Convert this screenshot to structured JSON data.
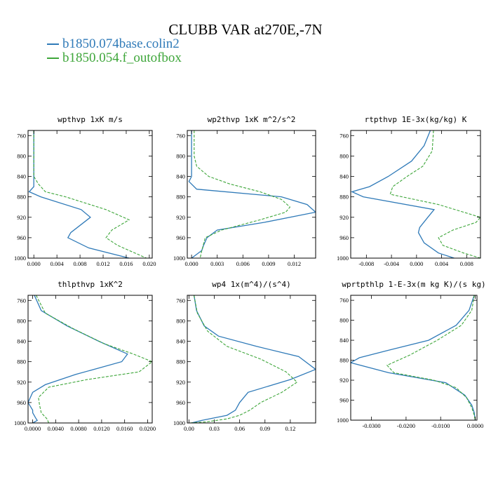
{
  "title": "CLUBB VAR at270E,-7N",
  "legend": [
    {
      "name": "b1850.074base.colin2",
      "color": "#2f7ab8"
    },
    {
      "name": "b1850.054.f_outofbox",
      "color": "#3ea63a"
    }
  ],
  "chart_data": [
    {
      "type": "line",
      "title": "wpthvp  1xK m/s",
      "xlim": [
        -0.001,
        0.0205
      ],
      "ylim": [
        1000,
        750
      ],
      "xticks": [
        "0.000",
        "0.004",
        "0.008",
        "0.012",
        "0.016",
        "0.020"
      ],
      "yticks": [
        "760",
        "800",
        "840",
        "880",
        "920",
        "960",
        "1000"
      ],
      "series": [
        {
          "name": "b1850.074base.colin2",
          "x": [
            0,
            0,
            0,
            0,
            0,
            -0.0008,
            0.0012,
            0.0082,
            0.0098,
            0.0064,
            0.0059,
            0.0095,
            0.0165
          ],
          "y": [
            750,
            780,
            810,
            840,
            860,
            870,
            880,
            905,
            920,
            950,
            960,
            980,
            1000
          ]
        },
        {
          "name": "b1850.054.f_outofbox",
          "x": [
            0,
            0,
            0,
            0.0008,
            0.002,
            0.0055,
            0.0125,
            0.0165,
            0.0135,
            0.0125,
            0.0145,
            0.0195
          ],
          "y": [
            750,
            800,
            840,
            855,
            870,
            880,
            905,
            925,
            945,
            960,
            975,
            1000
          ]
        }
      ]
    },
    {
      "type": "line",
      "title": "wp2thvp  1xK m^2/s^2",
      "xlim": [
        -0.0005,
        0.0145
      ],
      "ylim": [
        1000,
        750
      ],
      "xticks": [
        "0.000",
        "0.003",
        "0.006",
        "0.009",
        "0.012"
      ],
      "yticks": [
        "760",
        "800",
        "840",
        "880",
        "920",
        "960",
        "1000"
      ],
      "series": [
        {
          "name": "b1850.074base.colin2",
          "x": [
            0,
            0,
            0,
            0,
            -0.0003,
            0.0006,
            0.0105,
            0.0135,
            0.0145,
            0.0085,
            0.003,
            0.0018,
            0.0014,
            0.0012,
            0.0004,
            0
          ],
          "y": [
            750,
            790,
            820,
            840,
            850,
            865,
            880,
            895,
            910,
            930,
            945,
            960,
            975,
            985,
            995,
            1000
          ]
        },
        {
          "name": "b1850.054.f_outofbox",
          "x": [
            0.0003,
            0.0003,
            0.0006,
            0.002,
            0.0045,
            0.008,
            0.0105,
            0.0115,
            0.011,
            0.008,
            0.0035,
            0.0016,
            0.0012,
            0.001
          ],
          "y": [
            750,
            800,
            820,
            840,
            855,
            870,
            885,
            900,
            910,
            925,
            945,
            960,
            985,
            1000
          ]
        }
      ]
    },
    {
      "type": "line",
      "title": "rtpthvp  1E-3x(kg/kg) K",
      "xlim": [
        -0.0105,
        0.0102
      ],
      "ylim": [
        1000,
        750
      ],
      "xticks": [
        "-0.008",
        "-0.004",
        "0.000",
        "0.004",
        "0.008"
      ],
      "yticks": [
        "760",
        "800",
        "840",
        "880",
        "920",
        "960",
        "1000"
      ],
      "series": [
        {
          "name": "b1850.074base.colin2",
          "x": [
            0.0022,
            0.0012,
            -0.0008,
            -0.0045,
            -0.0075,
            -0.0103,
            -0.0085,
            0.0028,
            0.0018,
            0.0005,
            0.0003,
            0.0012,
            0.0035,
            0.006
          ],
          "y": [
            750,
            780,
            810,
            840,
            860,
            870,
            880,
            905,
            920,
            940,
            950,
            970,
            990,
            1000
          ]
        },
        {
          "name": "b1850.054.f_outofbox",
          "x": [
            0.0027,
            0.0025,
            0.001,
            -0.0015,
            -0.0038,
            -0.0042,
            0.0035,
            0.0102,
            0.0095,
            0.0058,
            0.0035,
            0.0042,
            0.0075,
            0.0102
          ],
          "y": [
            750,
            790,
            820,
            840,
            860,
            875,
            895,
            920,
            930,
            945,
            960,
            975,
            990,
            1000
          ]
        }
      ]
    },
    {
      "type": "line",
      "title": "thlpthvp  1xK^2",
      "xlim": [
        -0.0008,
        0.0208
      ],
      "ylim": [
        1000,
        750
      ],
      "xticks": [
        "0.0000",
        "0.0040",
        "0.0080",
        "0.0120",
        "0.0160",
        "0.0200"
      ],
      "yticks": [
        "760",
        "800",
        "840",
        "880",
        "920",
        "960",
        "1000"
      ],
      "series": [
        {
          "name": "b1850.074base.colin2",
          "x": [
            0.0003,
            0.0015,
            0.006,
            0.0115,
            0.0165,
            0.0155,
            0.0075,
            0.0022,
            0,
            -0.0008,
            0,
            0,
            0.0005,
            0.0008,
            0
          ],
          "y": [
            750,
            780,
            810,
            840,
            865,
            880,
            905,
            925,
            940,
            960,
            975,
            980,
            990,
            995,
            1000
          ]
        },
        {
          "name": "b1850.054.f_outofbox",
          "x": [
            0.0006,
            0.0022,
            0.007,
            0.0125,
            0.0175,
            0.0208,
            0.0185,
            0.0095,
            0.0028,
            0.001,
            0.0012,
            0.0015,
            0.0025,
            0.0028
          ],
          "y": [
            750,
            785,
            815,
            845,
            865,
            880,
            900,
            915,
            930,
            950,
            965,
            980,
            992,
            1000
          ]
        }
      ]
    },
    {
      "type": "line",
      "title": "wp4  1x(m^4)/(s^4)",
      "xlim": [
        -0.002,
        0.15
      ],
      "ylim": [
        1000,
        750
      ],
      "xticks": [
        "0.00",
        "0.03",
        "0.06",
        "0.09",
        "0.12"
      ],
      "yticks": [
        "760",
        "800",
        "840",
        "880",
        "920",
        "960",
        "1000"
      ],
      "series": [
        {
          "name": "b1850.074base.colin2",
          "x": [
            0.006,
            0.009,
            0.018,
            0.035,
            0.08,
            0.13,
            0.15,
            0.12,
            0.07,
            0.06,
            0.055,
            0.045,
            0.03,
            0.015,
            0.003
          ],
          "y": [
            750,
            780,
            810,
            830,
            850,
            870,
            895,
            915,
            940,
            960,
            975,
            985,
            990,
            995,
            1000
          ]
        },
        {
          "name": "b1850.054.f_outofbox",
          "x": [
            0.006,
            0.01,
            0.022,
            0.045,
            0.085,
            0.115,
            0.128,
            0.11,
            0.085,
            0.072,
            0.06,
            0.045,
            0.02,
            0
          ],
          "y": [
            750,
            785,
            820,
            850,
            875,
            900,
            920,
            940,
            960,
            975,
            985,
            992,
            998,
            1000
          ]
        }
      ]
    },
    {
      "type": "line",
      "title": "wprtpthlp  1-E-3x(m kg K)/(s kg)",
      "xlim": [
        -0.036,
        0.0005
      ],
      "ylim": [
        1000,
        750
      ],
      "xticks": [
        "-0.0300",
        "-0.0200",
        "-0.0100",
        "0.0000"
      ],
      "yticks": [
        "760",
        "800",
        "840",
        "880",
        "920",
        "960",
        "1000"
      ],
      "series": [
        {
          "name": "b1850.074base.colin2",
          "x": [
            -0.0003,
            -0.0018,
            -0.0055,
            -0.0135,
            -0.025,
            -0.0335,
            -0.036,
            -0.025,
            -0.0085,
            -0.003,
            -0.001,
            -0.0003,
            0
          ],
          "y": [
            750,
            780,
            810,
            840,
            860,
            875,
            885,
            905,
            925,
            950,
            970,
            985,
            1000
          ]
        },
        {
          "name": "b1850.054.f_outofbox",
          "x": [
            -0.0003,
            -0.001,
            -0.004,
            -0.011,
            -0.019,
            -0.0255,
            -0.0235,
            -0.012,
            -0.0055,
            -0.0025,
            -0.001,
            -0.0003,
            0
          ],
          "y": [
            750,
            780,
            810,
            840,
            870,
            890,
            905,
            920,
            935,
            955,
            975,
            990,
            1000
          ]
        }
      ]
    }
  ]
}
